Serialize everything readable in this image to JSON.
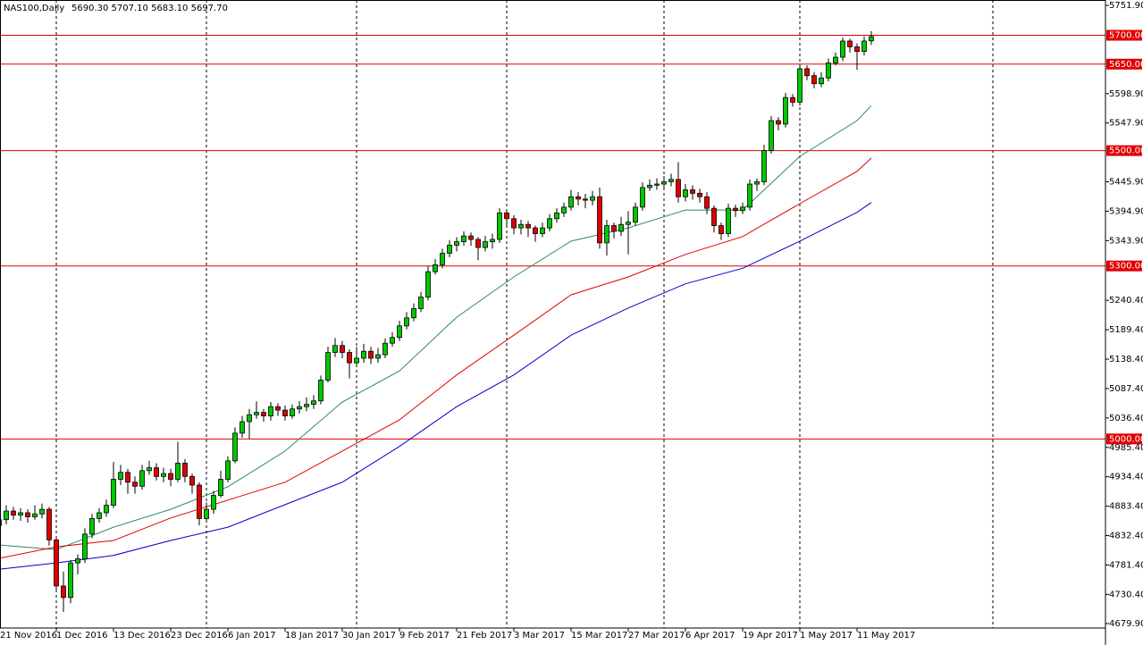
{
  "chart_data": {
    "type": "candlestick",
    "title": "NAS100,Daily",
    "subtitle": "5690.30 5707.10 5683.10 5697.70",
    "categories": [
      "21 Nov 2016",
      null,
      null,
      null,
      null,
      null,
      null,
      null,
      "1 Dec 2016",
      null,
      null,
      null,
      null,
      null,
      null,
      null,
      "13 Dec 2016",
      null,
      null,
      null,
      null,
      null,
      null,
      null,
      "23 Dec 2016",
      null,
      null,
      null,
      null,
      null,
      null,
      null,
      "6 Jan 2017",
      null,
      null,
      null,
      null,
      null,
      null,
      null,
      "18 Jan 2017",
      null,
      null,
      null,
      null,
      null,
      null,
      null,
      "30 Jan 2017",
      null,
      null,
      null,
      null,
      null,
      null,
      null,
      "9 Feb 2017",
      null,
      null,
      null,
      null,
      null,
      null,
      null,
      "21 Feb 2017",
      null,
      null,
      null,
      null,
      null,
      null,
      null,
      "3 Mar 2017",
      null,
      null,
      null,
      null,
      null,
      null,
      null,
      "15 Mar 2017",
      null,
      null,
      null,
      null,
      null,
      null,
      null,
      "27 Mar 2017",
      null,
      null,
      null,
      null,
      null,
      null,
      null,
      "6 Apr 2017",
      null,
      null,
      null,
      null,
      null,
      null,
      null,
      "19 Apr 2017",
      null,
      null,
      null,
      null,
      null,
      null,
      null,
      "1 May 2017",
      null,
      null,
      null,
      null,
      null,
      null,
      null,
      "11 May 2017",
      null,
      null
    ],
    "open": [
      4850,
      4860,
      4875,
      4868,
      4872,
      4865,
      4870,
      4878,
      4825,
      4745,
      4725,
      4785,
      4792,
      4835,
      4862,
      4872,
      4885,
      4930,
      4942,
      4925,
      4918,
      4945,
      4950,
      4935,
      4940,
      4930,
      4958,
      4935,
      4920,
      4862,
      4878,
      4902,
      4930,
      4962,
      5010,
      5030,
      5042,
      5046,
      5040,
      5056,
      5050,
      5040,
      5052,
      5056,
      5060,
      5066,
      5102,
      5150,
      5162,
      5150,
      5132,
      5140,
      5152,
      5140,
      5146,
      5166,
      5176,
      5196,
      5210,
      5226,
      5246,
      5290,
      5302,
      5322,
      5336,
      5342,
      5352,
      5346,
      5332,
      5342,
      5346,
      5392,
      5382,
      5366,
      5372,
      5366,
      5356,
      5366,
      5382,
      5392,
      5402,
      5420,
      5416,
      5414,
      5420,
      5340,
      5370,
      5360,
      5372,
      5376,
      5402,
      5436,
      5440,
      5442,
      5446,
      5450,
      5420,
      5432,
      5426,
      5420,
      5400,
      5370,
      5356,
      5400,
      5396,
      5402,
      5442,
      5446,
      5500,
      5552,
      5546,
      5592,
      5584,
      5642,
      5630,
      5616,
      5626,
      5652,
      5662,
      5690,
      5680,
      5672,
      5690.3
    ],
    "high": [
      4872,
      4885,
      4882,
      4880,
      4878,
      4885,
      4888,
      4882,
      4830,
      4770,
      4790,
      4800,
      4845,
      4870,
      4880,
      4895,
      4960,
      4955,
      4948,
      4935,
      4955,
      4962,
      4958,
      4950,
      4948,
      4995,
      4965,
      4940,
      4925,
      4890,
      4910,
      4945,
      4970,
      5020,
      5040,
      5052,
      5065,
      5052,
      5064,
      5062,
      5058,
      5060,
      5066,
      5072,
      5076,
      5110,
      5160,
      5175,
      5170,
      5155,
      5160,
      5165,
      5160,
      5158,
      5174,
      5185,
      5205,
      5220,
      5235,
      5255,
      5300,
      5312,
      5330,
      5345,
      5350,
      5360,
      5358,
      5350,
      5352,
      5356,
      5400,
      5398,
      5388,
      5380,
      5378,
      5370,
      5375,
      5390,
      5400,
      5410,
      5432,
      5428,
      5425,
      5430,
      5436,
      5380,
      5375,
      5385,
      5395,
      5410,
      5445,
      5450,
      5452,
      5456,
      5460,
      5480,
      5442,
      5440,
      5434,
      5428,
      5405,
      5375,
      5408,
      5406,
      5410,
      5450,
      5452,
      5510,
      5560,
      5558,
      5600,
      5598,
      5650,
      5648,
      5636,
      5636,
      5660,
      5670,
      5696,
      5694,
      5686,
      5698,
      5707.1
    ],
    "low": [
      4842,
      4852,
      4860,
      4858,
      4855,
      4860,
      4862,
      4815,
      4735,
      4700,
      4715,
      4765,
      4785,
      4828,
      4855,
      4865,
      4880,
      4920,
      4905,
      4905,
      4912,
      4938,
      4928,
      4925,
      4918,
      4925,
      4925,
      4905,
      4850,
      4855,
      4870,
      4898,
      4925,
      4958,
      5002,
      5000,
      5035,
      5030,
      5032,
      5040,
      5032,
      5035,
      5044,
      5048,
      5052,
      5060,
      5098,
      5142,
      5140,
      5105,
      5124,
      5132,
      5130,
      5132,
      5140,
      5160,
      5170,
      5190,
      5204,
      5220,
      5240,
      5285,
      5296,
      5315,
      5325,
      5335,
      5335,
      5310,
      5325,
      5330,
      5340,
      5370,
      5355,
      5355,
      5350,
      5342,
      5350,
      5360,
      5375,
      5385,
      5396,
      5405,
      5400,
      5405,
      5330,
      5318,
      5348,
      5352,
      5320,
      5370,
      5396,
      5430,
      5432,
      5434,
      5438,
      5410,
      5412,
      5415,
      5410,
      5390,
      5358,
      5345,
      5350,
      5385,
      5390,
      5396,
      5430,
      5440,
      5495,
      5535,
      5540,
      5576,
      5578,
      5622,
      5608,
      5610,
      5620,
      5648,
      5655,
      5670,
      5640,
      5665,
      5683.1
    ],
    "close": [
      4860,
      4875,
      4868,
      4872,
      4865,
      4870,
      4878,
      4825,
      4745,
      4725,
      4785,
      4792,
      4835,
      4862,
      4872,
      4885,
      4930,
      4942,
      4925,
      4918,
      4945,
      4950,
      4935,
      4940,
      4930,
      4958,
      4935,
      4920,
      4862,
      4878,
      4902,
      4930,
      4962,
      5010,
      5030,
      5042,
      5046,
      5040,
      5056,
      5050,
      5040,
      5052,
      5056,
      5060,
      5066,
      5102,
      5150,
      5162,
      5150,
      5132,
      5140,
      5152,
      5140,
      5146,
      5166,
      5176,
      5196,
      5210,
      5226,
      5246,
      5290,
      5302,
      5322,
      5336,
      5342,
      5352,
      5346,
      5332,
      5342,
      5346,
      5392,
      5382,
      5366,
      5372,
      5366,
      5356,
      5366,
      5382,
      5392,
      5402,
      5420,
      5416,
      5414,
      5420,
      5340,
      5370,
      5360,
      5372,
      5376,
      5402,
      5436,
      5440,
      5442,
      5446,
      5450,
      5420,
      5432,
      5426,
      5420,
      5400,
      5370,
      5356,
      5400,
      5396,
      5402,
      5442,
      5446,
      5500,
      5552,
      5546,
      5592,
      5584,
      5642,
      5630,
      5616,
      5626,
      5652,
      5662,
      5690,
      5680,
      5672,
      5690,
      5697.7
    ],
    "up_color": "#00c800",
    "down_color": "#e00000",
    "series": [
      {
        "color": "#2e8b57",
        "x": [
          0,
          8,
          16,
          24,
          32,
          40,
          48,
          56,
          64,
          72,
          80,
          88,
          96,
          104,
          112,
          120,
          122
        ],
        "values": [
          4816,
          4808,
          4847,
          4878,
          4917,
          4979,
          5064,
          5118,
          5211,
          5281,
          5343,
          5366,
          5397,
          5397,
          5490,
          5552,
          5578
        ]
      },
      {
        "color": "#e00000",
        "x": [
          0,
          8,
          16,
          24,
          32,
          40,
          48,
          56,
          64,
          72,
          80,
          88,
          96,
          104,
          112,
          120,
          122
        ],
        "values": [
          4793,
          4813,
          4824,
          4863,
          4894,
          4925,
          4979,
          5033,
          5111,
          5180,
          5250,
          5281,
          5320,
          5351,
          5408,
          5464,
          5487
        ]
      },
      {
        "color": "#0000c8",
        "x": [
          0,
          8,
          16,
          24,
          32,
          40,
          48,
          56,
          64,
          72,
          80,
          88,
          96,
          104,
          112,
          120,
          122
        ],
        "values": [
          4774,
          4785,
          4798,
          4824,
          4847,
          4886,
          4925,
          4987,
          5056,
          5111,
          5180,
          5227,
          5269,
          5296,
          5343,
          5393,
          5410
        ]
      }
    ],
    "hlines": [
      {
        "value": 5700,
        "label": "5700.00"
      },
      {
        "value": 5650,
        "label": "5650.00"
      },
      {
        "value": 5500,
        "label": "5500.00"
      },
      {
        "value": 5300,
        "label": "5300.00"
      },
      {
        "value": 5000,
        "label": "5000.00"
      }
    ],
    "hline_color": "#e00000",
    "ylim": [
      4672.1,
      5761.2
    ],
    "yticks": [
      {
        "value": 5751.9,
        "label": "5751.90"
      },
      {
        "value": 5598.9,
        "label": "5598.90"
      },
      {
        "value": 5547.9,
        "label": "5547.90"
      },
      {
        "value": 5445.9,
        "label": "5445.90"
      },
      {
        "value": 5394.9,
        "label": "5394.90"
      },
      {
        "value": 5343.9,
        "label": "5343.90"
      },
      {
        "value": 5240.4,
        "label": "5240.40"
      },
      {
        "value": 5189.4,
        "label": "5189.40"
      },
      {
        "value": 5138.4,
        "label": "5138.40"
      },
      {
        "value": 5087.4,
        "label": "5087.40"
      },
      {
        "value": 5036.4,
        "label": "5036.40"
      },
      {
        "value": 4985.4,
        "label": "4985.40"
      },
      {
        "value": 4934.4,
        "label": "4934.40"
      },
      {
        "value": 4883.4,
        "label": "4883.40"
      },
      {
        "value": 4832.4,
        "label": "4832.40"
      },
      {
        "value": 4781.4,
        "label": "4781.40"
      },
      {
        "value": 4730.4,
        "label": "4730.40"
      },
      {
        "value": 4679.9,
        "label": "4679.90"
      }
    ]
  }
}
